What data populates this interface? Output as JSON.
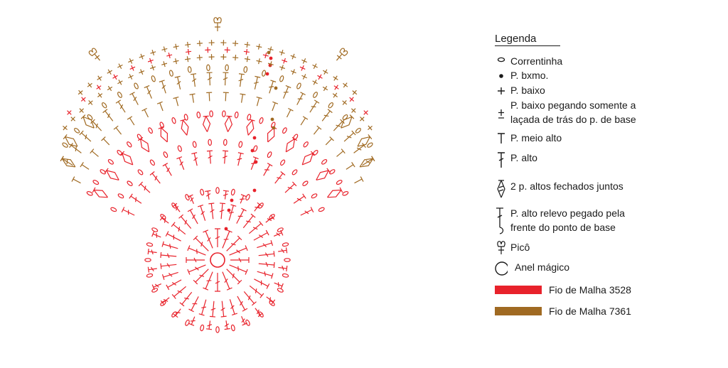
{
  "legend": {
    "title": "Legenda",
    "items": [
      {
        "icon": "chain-oval-icon",
        "label": "Correntinha"
      },
      {
        "icon": "slip-stitch-dot-icon",
        "label": "P. bxmo."
      },
      {
        "icon": "single-crochet-plus-icon",
        "label": "P. baixo"
      },
      {
        "icon": "back-loop-single-crochet-icon",
        "label": "P. baixo pegando somente a\nlaçada de trás do p. de base"
      },
      {
        "icon": "half-double-crochet-icon",
        "label": "P. meio alto"
      },
      {
        "icon": "double-crochet-icon",
        "label": "P. alto"
      },
      {
        "icon": "dc2tog-icon",
        "label": "2 p. altos fechados juntos"
      },
      {
        "icon": "front-post-double-crochet-icon",
        "label": "P. alto relevo pegado pela\nfrente do ponto de base"
      },
      {
        "icon": "picot-icon",
        "label": "Picô"
      },
      {
        "icon": "magic-ring-icon",
        "label": "Anel mágico"
      }
    ],
    "yarns": [
      {
        "label": "Fio de Malha 3528",
        "color": "#e8222b"
      },
      {
        "label": "Fio de Malha 7361",
        "color": "#a06a22"
      }
    ]
  },
  "colors": {
    "red": "#e8222b",
    "gold": "#a06a22",
    "text": "#1a1a1a"
  }
}
